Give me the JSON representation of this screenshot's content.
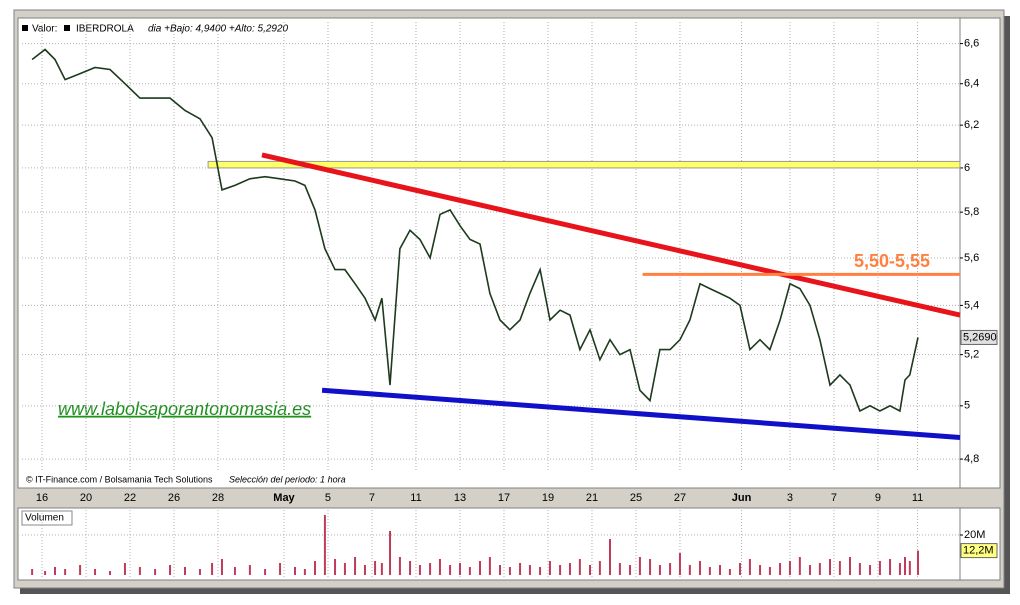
{
  "chart_data": [
    {
      "type": "line",
      "header": {
        "symbol_label": "Valor:",
        "symbol": "IBERDROLA",
        "info": "dia +Bajo: 4,9400 +Alto: 5,2920"
      },
      "footer": "© IT-Finance.com / Bolsamania Tech Solutions",
      "period": "Selección del periodo: 1 hora",
      "watermark": "www.labolsaporantonomasia.es",
      "log_scale": true,
      "grid": true,
      "color": "#1e3a1e",
      "xlim": [
        -0.91,
        41.73
      ],
      "ylim": [
        4.76,
        6.71
      ],
      "yticks": [
        {
          "value": 6.6,
          "label": "6,6"
        },
        {
          "value": 6.4,
          "label": "6,4"
        },
        {
          "value": 6.2,
          "label": "6,2"
        },
        6,
        {
          "value": 5.8,
          "label": "5,8"
        },
        {
          "value": 5.6,
          "label": "5,6"
        },
        {
          "value": 5.4,
          "label": "5,4"
        },
        {
          "value": 5.2,
          "label": "5,2"
        },
        5,
        {
          "value": 4.8,
          "label": "4,8"
        }
      ],
      "xticks": [
        {
          "value": 0,
          "label": "16"
        },
        {
          "value": 2,
          "label": "20"
        },
        {
          "value": 4,
          "label": "22"
        },
        {
          "value": 6,
          "label": "26"
        },
        {
          "value": 8,
          "label": "28"
        },
        {
          "value": 11,
          "label": "May"
        },
        {
          "value": 13,
          "label": "5"
        },
        {
          "value": 15,
          "label": "7"
        },
        {
          "value": 17,
          "label": "11"
        },
        {
          "value": 19,
          "label": "13"
        },
        {
          "value": 21,
          "label": "17"
        },
        {
          "value": 23,
          "label": "19"
        },
        {
          "value": 25,
          "label": "21"
        },
        {
          "value": 27,
          "label": "25"
        },
        {
          "value": 29,
          "label": "27"
        },
        {
          "value": 31.8,
          "label": "Jun"
        },
        {
          "value": 34,
          "label": "3"
        },
        {
          "value": 36,
          "label": "7"
        },
        {
          "value": 38,
          "label": "9"
        },
        {
          "value": 39.8,
          "label": "11"
        }
      ],
      "x": [
        -0.45,
        0.14,
        0.59,
        1.05,
        1.73,
        2.41,
        3.09,
        3.77,
        4.45,
        5.14,
        5.82,
        6.5,
        7.18,
        7.73,
        8.18,
        8.77,
        9.45,
        10.14,
        10.82,
        11.5,
        11.95,
        12.41,
        12.86,
        13.32,
        13.77,
        14.23,
        14.68,
        15.14,
        15.45,
        15.82,
        16.27,
        16.73,
        17.18,
        17.64,
        18.09,
        18.55,
        19,
        19.45,
        19.91,
        20.36,
        20.82,
        21.27,
        21.73,
        22.18,
        22.64,
        23.09,
        23.55,
        24,
        24.45,
        24.91,
        25.36,
        25.82,
        26.27,
        26.73,
        27.18,
        27.64,
        28.09,
        28.55,
        29,
        29.45,
        29.91,
        30.36,
        30.82,
        31.27,
        31.73,
        32.18,
        32.64,
        33.09,
        33.55,
        34,
        34.45,
        34.91,
        35.36,
        35.82,
        36.27,
        36.73,
        37.18,
        37.64,
        38.09,
        38.55,
        39,
        39.23,
        39.45,
        39.82
      ],
      "values": [
        6.52,
        6.57,
        6.52,
        6.42,
        6.45,
        6.48,
        6.47,
        6.4,
        6.33,
        6.33,
        6.33,
        6.27,
        6.23,
        6.14,
        5.9,
        5.92,
        5.95,
        5.96,
        5.95,
        5.94,
        5.92,
        5.81,
        5.64,
        5.55,
        5.55,
        5.49,
        5.43,
        5.34,
        5.43,
        5.08,
        5.64,
        5.72,
        5.68,
        5.6,
        5.79,
        5.81,
        5.74,
        5.68,
        5.66,
        5.45,
        5.34,
        5.3,
        5.34,
        5.45,
        5.55,
        5.34,
        5.38,
        5.36,
        5.22,
        5.3,
        5.18,
        5.26,
        5.2,
        5.22,
        5.06,
        5.02,
        5.22,
        5.22,
        5.26,
        5.34,
        5.49,
        5.47,
        5.45,
        5.43,
        5.4,
        5.22,
        5.26,
        5.22,
        5.34,
        5.49,
        5.47,
        5.4,
        5.26,
        5.08,
        5.12,
        5.08,
        4.98,
        5.0,
        4.98,
        5.0,
        4.98,
        5.1,
        5.12,
        5.269
      ],
      "last_value": {
        "value": 5.269,
        "label": "5,2690"
      },
      "bands": [
        {
          "color": "#ffff66",
          "x": [
            7.55,
            41.73
          ],
          "values": [
            6.0,
            6.03
          ]
        }
      ],
      "trendlines": [
        {
          "color": "#e8141c",
          "x": [
            10,
            41.73
          ],
          "values": [
            6.06,
            5.36
          ]
        },
        {
          "color": "#ff8040",
          "x": [
            27.3,
            41.73
          ],
          "values": [
            5.53,
            5.53
          ],
          "label": "5,50-5,55"
        },
        {
          "color": "#1010c8",
          "x": [
            12.73,
            41.73
          ],
          "values": [
            5.06,
            4.88
          ]
        }
      ]
    },
    {
      "type": "bar",
      "title": "Volumen",
      "color": "#c03a5a",
      "xlim": [
        -0.91,
        41.73
      ],
      "ylim": [
        0,
        32.5
      ],
      "yticks": [
        {
          "value": 20,
          "label": "20M"
        }
      ],
      "x": [
        -0.45,
        0.14,
        0.59,
        1.05,
        1.73,
        2.41,
        3.09,
        3.77,
        4.45,
        5.14,
        5.82,
        6.5,
        7.18,
        7.73,
        8.18,
        8.77,
        9.45,
        10.14,
        10.82,
        11.5,
        11.95,
        12.41,
        12.86,
        13.32,
        13.77,
        14.23,
        14.68,
        15.14,
        15.45,
        15.82,
        16.27,
        16.73,
        17.18,
        17.64,
        18.09,
        18.55,
        19,
        19.45,
        19.91,
        20.36,
        20.82,
        21.27,
        21.73,
        22.18,
        22.64,
        23.09,
        23.55,
        24,
        24.45,
        24.91,
        25.36,
        25.82,
        26.27,
        26.73,
        27.18,
        27.64,
        28.09,
        28.55,
        29,
        29.45,
        29.91,
        30.36,
        30.82,
        31.27,
        31.73,
        32.18,
        32.64,
        33.09,
        33.55,
        34,
        34.45,
        34.91,
        35.36,
        35.82,
        36.27,
        36.73,
        37.18,
        37.64,
        38.09,
        38.55,
        39,
        39.23,
        39.45,
        39.82
      ],
      "values": [
        3,
        2,
        4,
        3,
        5,
        3,
        2,
        6,
        4,
        3,
        5,
        4,
        3,
        6,
        8,
        4,
        5,
        3,
        6,
        4,
        3,
        7,
        30,
        8,
        6,
        9,
        5,
        7,
        6,
        22,
        9,
        7,
        5,
        6,
        8,
        5,
        6,
        4,
        7,
        9,
        5,
        4,
        6,
        5,
        4,
        7,
        5,
        6,
        8,
        5,
        7,
        18,
        6,
        5,
        9,
        8,
        5,
        6,
        11,
        5,
        7,
        4,
        5,
        3,
        6,
        8,
        5,
        4,
        6,
        7,
        9,
        5,
        6,
        8,
        7,
        9,
        6,
        5,
        7,
        8,
        6,
        9,
        7,
        12.2
      ],
      "last_value": {
        "value": 12.2,
        "label": "12,2M"
      }
    }
  ]
}
